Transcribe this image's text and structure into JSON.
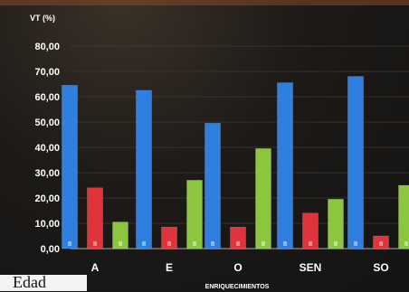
{
  "caption": "Edad",
  "chart_data": {
    "type": "bar",
    "ylabel": "VT (%)",
    "xlabel": "ENRIQUECIMIENTOS",
    "categories": [
      "A",
      "E",
      "O",
      "SEN",
      "SO"
    ],
    "ylim": [
      0,
      80
    ],
    "yticks": [
      "80,00",
      "70,00",
      "60,00",
      "50,00",
      "40,00",
      "30,00",
      "20,00",
      "10,00",
      "0,00"
    ],
    "series": [
      {
        "color": "#2f7fe0",
        "values": [
          64.5,
          62.5,
          49.5,
          65.5,
          68.0
        ]
      },
      {
        "color": "#e0343c",
        "values": [
          24.0,
          8.5,
          8.5,
          14.0,
          5.0
        ]
      },
      {
        "color": "#8cc63f",
        "values": [
          10.5,
          27.0,
          39.5,
          19.5,
          25.0
        ]
      }
    ],
    "grid": true,
    "legend": "none"
  }
}
